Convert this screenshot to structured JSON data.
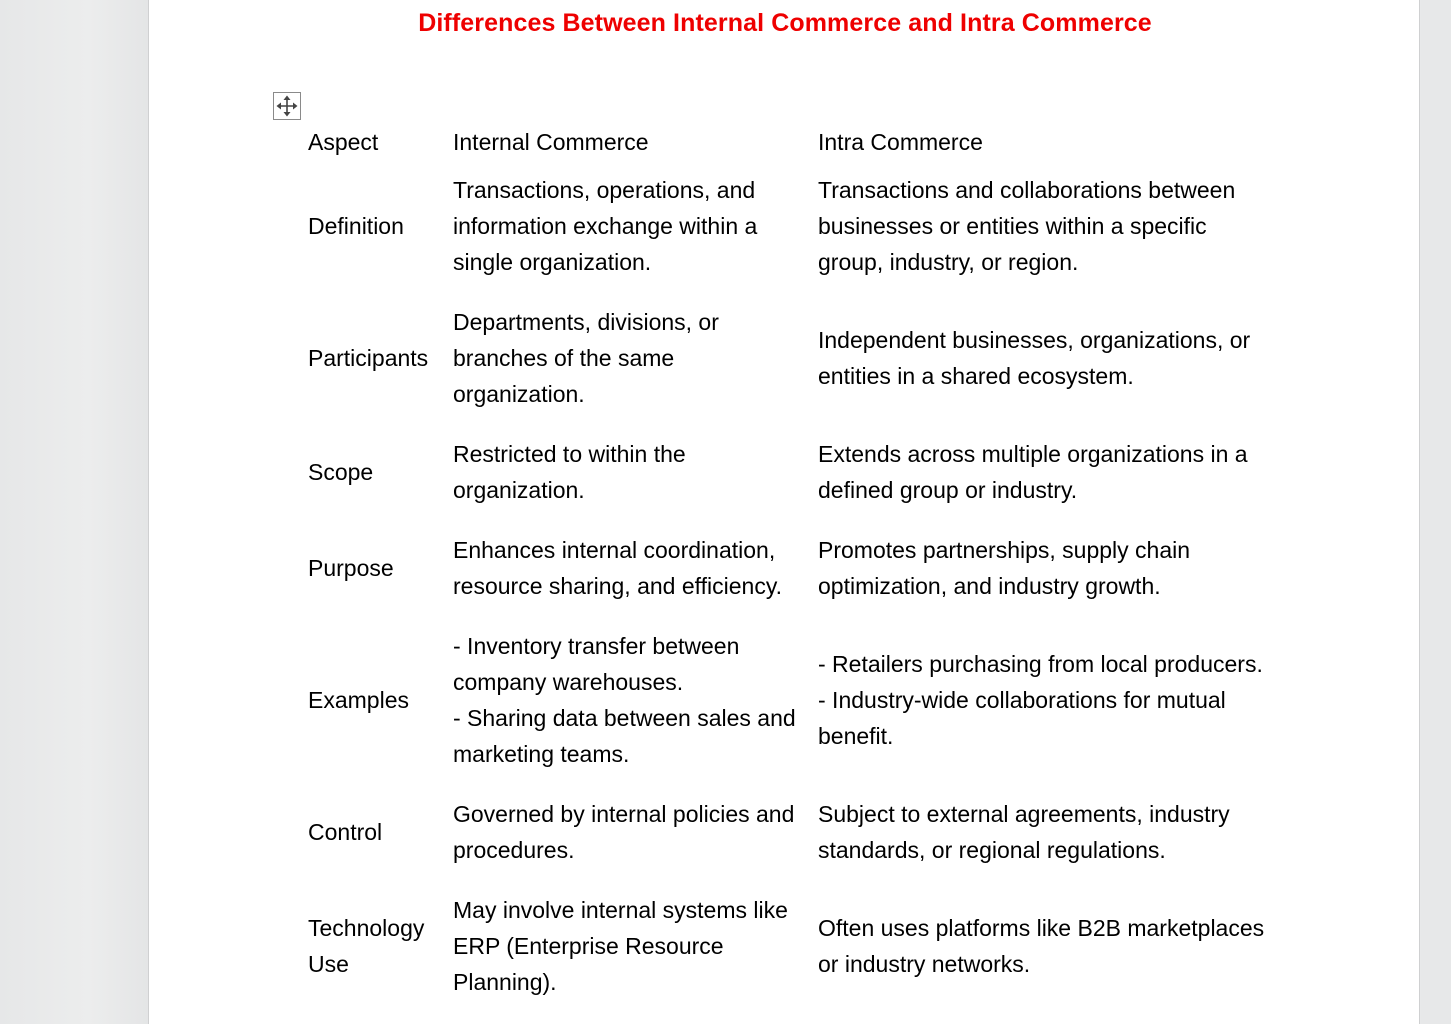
{
  "document": {
    "title": "Differences Between Internal Commerce and Intra Commerce",
    "title_color": "#ee0000",
    "table_handle_icon": "move-arrows-icon"
  },
  "table": {
    "headers": [
      "Aspect",
      "Internal Commerce",
      "Intra Commerce"
    ],
    "rows": [
      {
        "aspect": "Definition",
        "internal": "Transactions, operations, and information exchange within a single organization.",
        "intra": "Transactions and collaborations between businesses or entities within a specific group, industry, or region."
      },
      {
        "aspect": "Participants",
        "internal": "Departments, divisions, or branches of the same organization.",
        "intra": "Independent businesses, organizations, or entities in a shared ecosystem."
      },
      {
        "aspect": "Scope",
        "internal": "Restricted to within the organization.",
        "intra": "Extends across multiple organizations in a defined group or industry."
      },
      {
        "aspect": "Purpose",
        "internal": "Enhances internal coordination, resource sharing, and efficiency.",
        "intra": "Promotes partnerships, supply chain optimization, and industry growth."
      },
      {
        "aspect": "Examples",
        "internal": "- Inventory transfer between company warehouses.\n- Sharing data between sales and marketing teams.",
        "intra": "- Retailers purchasing from local producers.\n- Industry-wide collaborations for mutual benefit."
      },
      {
        "aspect": "Control",
        "internal": "Governed by internal policies and procedures.",
        "intra": "Subject to external agreements, industry standards, or regional regulations."
      },
      {
        "aspect": "Technology Use",
        "internal": "May involve internal systems like ERP (Enterprise Resource Planning).",
        "intra": "Often uses platforms like B2B marketplaces or industry networks."
      }
    ]
  }
}
